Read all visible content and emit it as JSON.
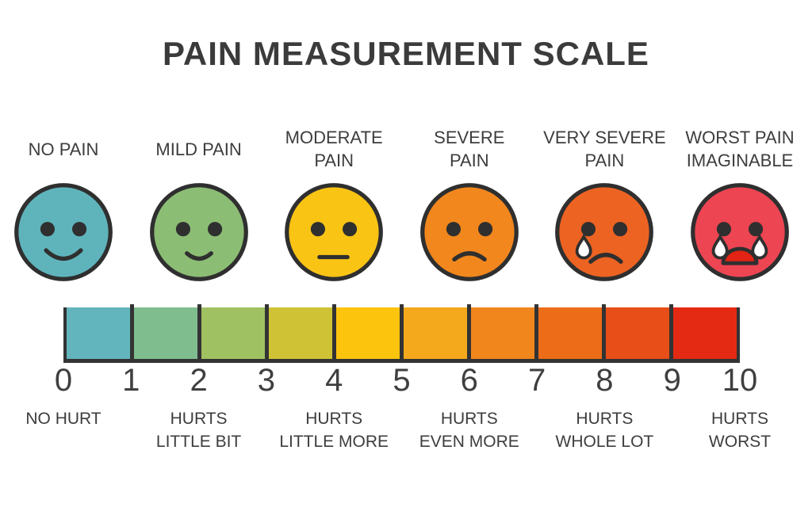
{
  "title": "PAIN MEASUREMENT SCALE",
  "faces": [
    {
      "label": "NO PAIN",
      "label_lines": [
        "NO PAIN"
      ],
      "color": "#5fb4bc",
      "value": 0,
      "expression": "big-smile"
    },
    {
      "label": "MILD PAIN",
      "label_lines": [
        "MILD PAIN"
      ],
      "color": "#8cbd74",
      "value": 2,
      "expression": "slight-smile"
    },
    {
      "label": "MODERATE PAIN",
      "label_lines": [
        "MODERATE",
        "PAIN"
      ],
      "color": "#fac414",
      "value": 4,
      "expression": "neutral"
    },
    {
      "label": "SEVERE PAIN",
      "label_lines": [
        "SEVERE",
        "PAIN"
      ],
      "color": "#f2871d",
      "value": 6,
      "expression": "frown"
    },
    {
      "label": "VERY SEVERE PAIN",
      "label_lines": [
        "VERY SEVERE",
        "PAIN"
      ],
      "color": "#ed6322",
      "value": 8,
      "expression": "frown-one-tear"
    },
    {
      "label": "WORST PAIN IMAGINABLE",
      "label_lines": [
        "WORST PAIN",
        "IMAGINABLE"
      ],
      "color": "#ee4553",
      "value": 10,
      "expression": "crying-open-mouth",
      "mouth_color": "#e32314"
    }
  ],
  "scale": {
    "min": 0,
    "max": 10,
    "numbers": [
      "0",
      "1",
      "2",
      "3",
      "4",
      "5",
      "6",
      "7",
      "8",
      "9",
      "10"
    ],
    "segment_colors": [
      "#62b5bc",
      "#7fbd8f",
      "#a0c161",
      "#cfc335",
      "#fcc40d",
      "#f4a81c",
      "#f0861c",
      "#ed6c17",
      "#e84e17",
      "#e42a13"
    ],
    "outline_color": "#333333"
  },
  "descriptors": [
    {
      "lines": [
        "NO HURT"
      ],
      "value": 0
    },
    {
      "lines": [
        "HURTS",
        "LITTLE BIT"
      ],
      "value": 2
    },
    {
      "lines": [
        "HURTS",
        "LITTLE MORE"
      ],
      "value": 4
    },
    {
      "lines": [
        "HURTS",
        "EVEN MORE"
      ],
      "value": 6
    },
    {
      "lines": [
        "HURTS",
        "WHOLE LOT"
      ],
      "value": 8
    },
    {
      "lines": [
        "HURTS",
        "WORST"
      ],
      "value": 10
    }
  ],
  "ink_color": "#3d3d3d"
}
